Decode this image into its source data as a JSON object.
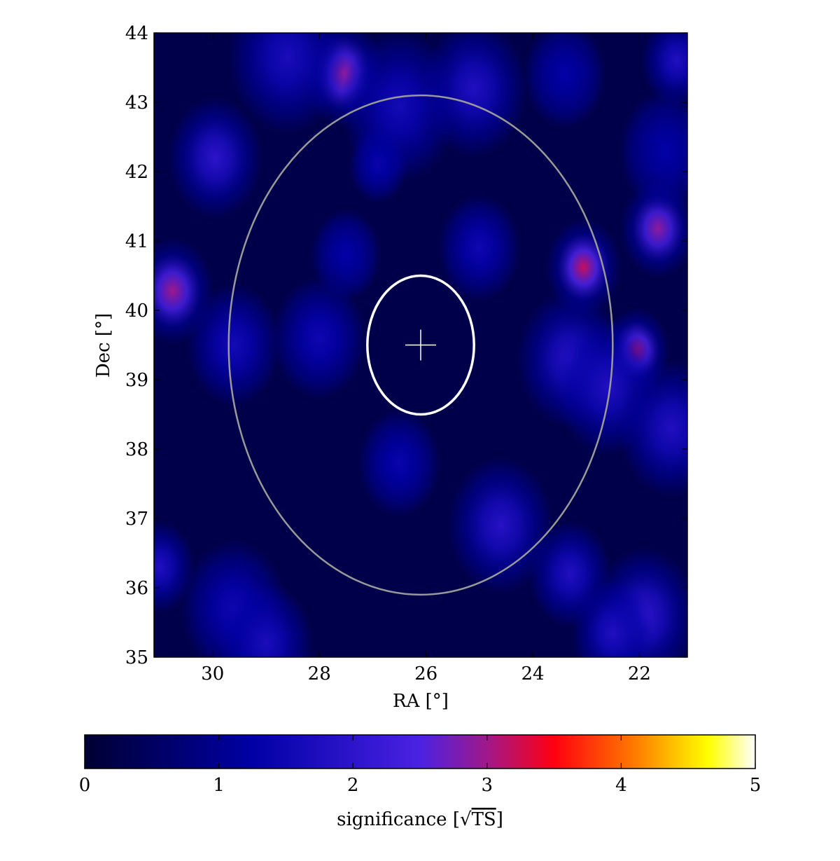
{
  "chart_data": {
    "type": "heatmap",
    "title": "",
    "xlabel": "RA [°]",
    "ylabel": "Dec [°]",
    "xlim": [
      31.1,
      21.1
    ],
    "ylim": [
      35,
      44
    ],
    "x_ticks": [
      "30",
      "28",
      "26",
      "24",
      "22"
    ],
    "y_ticks": [
      "35",
      "36",
      "37",
      "38",
      "39",
      "40",
      "41",
      "42",
      "43",
      "44"
    ],
    "colorbar": {
      "label_prefix": "significance [",
      "label_sqrt": "√",
      "label_ts": "TS",
      "label_suffix": "]",
      "range": [
        0,
        5
      ],
      "ticks": [
        "0",
        "1",
        "2",
        "3",
        "4",
        "5"
      ],
      "colormap": "gnuplot2"
    },
    "center": {
      "ra": 26.1,
      "dec": 39.5
    },
    "overlays": [
      {
        "shape": "circle",
        "ra": 26.1,
        "dec": 39.5,
        "radius_deg": 1.0,
        "color": "#ffffff"
      },
      {
        "shape": "circle",
        "ra": 26.1,
        "dec": 39.5,
        "radius_deg": 3.6,
        "color": "#999999"
      },
      {
        "shape": "cross",
        "ra": 26.1,
        "dec": 39.5,
        "color": "#ffffff"
      }
    ],
    "hotspots": [
      {
        "ra": 23.05,
        "dec": 40.62,
        "sigma_deg": 0.32,
        "significance": 3.2
      },
      {
        "ra": 22.05,
        "dec": 39.42,
        "sigma_deg": 0.28,
        "significance": 3.1
      },
      {
        "ra": 21.65,
        "dec": 41.18,
        "sigma_deg": 0.32,
        "significance": 2.9
      },
      {
        "ra": 30.75,
        "dec": 40.28,
        "sigma_deg": 0.35,
        "significance": 3.0
      },
      {
        "ra": 27.55,
        "dec": 43.42,
        "sigma_deg": 0.35,
        "significance": 2.9
      },
      {
        "ra": 29.95,
        "dec": 42.2,
        "sigma_deg": 0.4,
        "significance": 2.0
      },
      {
        "ra": 25.1,
        "dec": 43.2,
        "sigma_deg": 0.45,
        "significance": 1.8
      },
      {
        "ra": 26.5,
        "dec": 42.95,
        "sigma_deg": 0.5,
        "significance": 1.6
      },
      {
        "ra": 28.6,
        "dec": 43.65,
        "sigma_deg": 0.5,
        "significance": 1.7
      },
      {
        "ra": 21.3,
        "dec": 43.6,
        "sigma_deg": 0.3,
        "significance": 1.8
      },
      {
        "ra": 23.3,
        "dec": 39.3,
        "sigma_deg": 0.45,
        "significance": 1.9
      },
      {
        "ra": 22.6,
        "dec": 38.9,
        "sigma_deg": 0.45,
        "significance": 1.8
      },
      {
        "ra": 21.4,
        "dec": 38.3,
        "sigma_deg": 0.45,
        "significance": 1.8
      },
      {
        "ra": 29.6,
        "dec": 39.5,
        "sigma_deg": 0.4,
        "significance": 1.6
      },
      {
        "ra": 28.0,
        "dec": 39.6,
        "sigma_deg": 0.4,
        "significance": 1.5
      },
      {
        "ra": 24.6,
        "dec": 36.9,
        "sigma_deg": 0.45,
        "significance": 1.9
      },
      {
        "ra": 23.3,
        "dec": 36.2,
        "sigma_deg": 0.35,
        "significance": 1.8
      },
      {
        "ra": 21.9,
        "dec": 35.6,
        "sigma_deg": 0.45,
        "significance": 2.0
      },
      {
        "ra": 22.5,
        "dec": 35.35,
        "sigma_deg": 0.35,
        "significance": 1.8
      },
      {
        "ra": 29.6,
        "dec": 35.7,
        "sigma_deg": 0.45,
        "significance": 1.5
      },
      {
        "ra": 29.0,
        "dec": 35.2,
        "sigma_deg": 0.4,
        "significance": 1.7
      },
      {
        "ra": 25.0,
        "dec": 40.9,
        "sigma_deg": 0.35,
        "significance": 1.5
      },
      {
        "ra": 26.5,
        "dec": 37.8,
        "sigma_deg": 0.35,
        "significance": 1.4
      },
      {
        "ra": 31.0,
        "dec": 36.3,
        "sigma_deg": 0.3,
        "significance": 1.8
      },
      {
        "ra": 27.5,
        "dec": 40.8,
        "sigma_deg": 0.3,
        "significance": 1.3
      },
      {
        "ra": 26.9,
        "dec": 42.1,
        "sigma_deg": 0.25,
        "significance": 1.4
      },
      {
        "ra": 21.5,
        "dec": 42.3,
        "sigma_deg": 0.4,
        "significance": 1.3
      },
      {
        "ra": 23.4,
        "dec": 43.4,
        "sigma_deg": 0.35,
        "significance": 1.3
      }
    ]
  }
}
